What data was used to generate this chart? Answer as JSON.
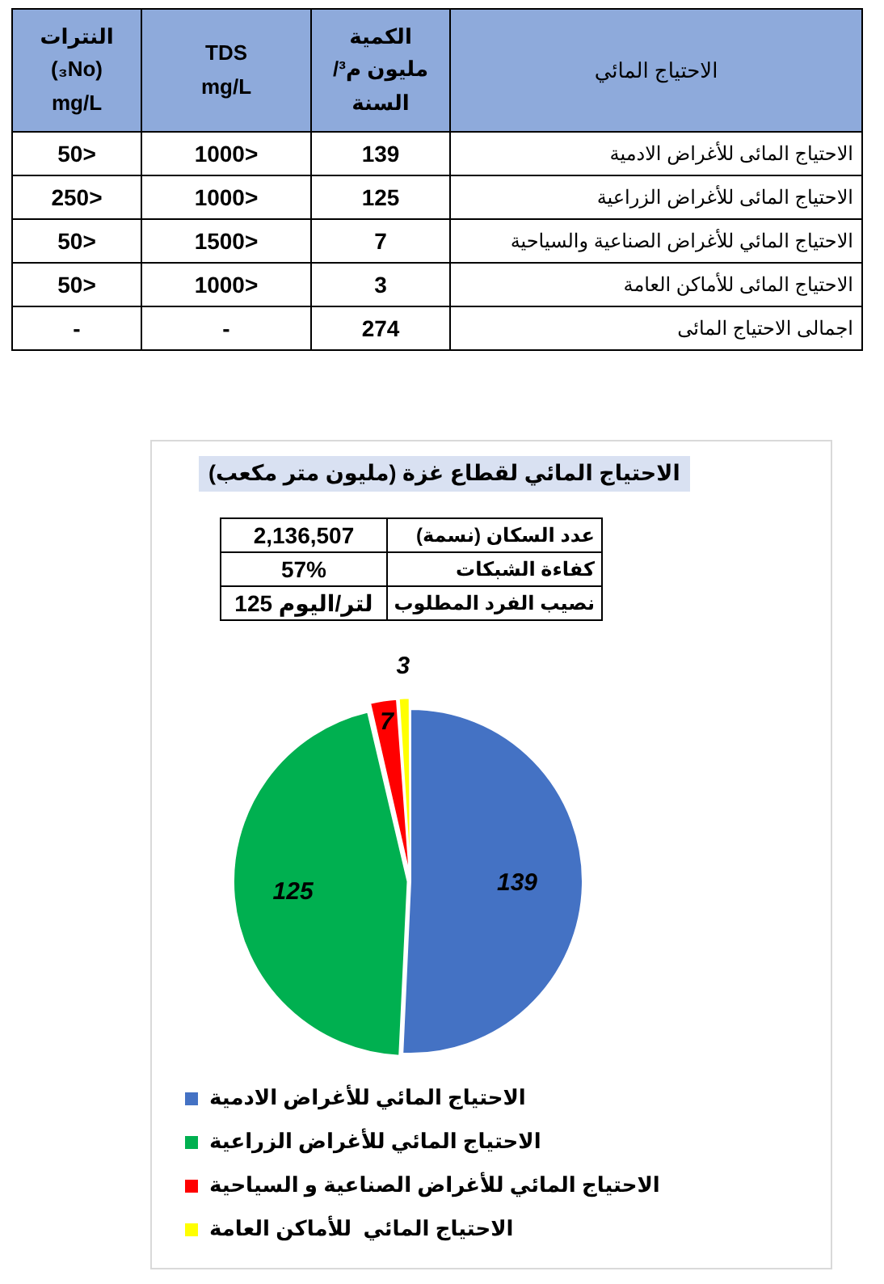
{
  "chart_data": [
    {
      "type": "other",
      "ylabel": "الاحتياج المائي",
      "categories": [
        "الاحتياج المائى للأغراض الادمية",
        "الاحتياج المائى للأغراض الزراعية",
        "الاحتياج المائي للأغراض الصناعية والسياحية",
        "الاحتياج المائى للأماكن العامة",
        "اجمالى الاحتياج المائى"
      ],
      "series": [
        {
          "name": "الكمية مليون م³/ السنة",
          "values": [
            139,
            125,
            7,
            3,
            274
          ]
        },
        {
          "name": "TDS mg/L",
          "values": [
            1000,
            1000,
            1500,
            1000,
            null
          ],
          "value_labels": [
            "1000>",
            "1000>",
            "1500>",
            "1000>",
            "-"
          ]
        },
        {
          "name": "النترات (₃No) mg/L",
          "values": [
            50,
            250,
            50,
            50,
            null
          ],
          "value_labels": [
            "50>",
            "250>",
            "50>",
            "50>",
            "-"
          ]
        }
      ],
      "data_labels": true
    },
    {
      "type": "pie",
      "title": "الاحتياج المائي لقطاع غزة (مليون متر مكعب)",
      "annotations": [
        "عدد السكان (نسمة)",
        "2,136,507",
        "كفاءة الشبكات",
        "57%",
        "نصيب الفرد المطلوب",
        "لتر/اليوم 125"
      ],
      "categories": [
        "الاحتياج المائي للأغراض الادمية",
        "الاحتياج المائي للأغراض الزراعية",
        "الاحتياج المائي للأغراض الصناعية و السياحية",
        "الاحتياج المائي  للأماكن العامة"
      ],
      "values": [
        139,
        125,
        7,
        3
      ],
      "colors": [
        "#4472c4",
        "#00b050",
        "#ff0000",
        "#ffff00"
      ],
      "data_labels": true,
      "legend": "bottom"
    }
  ]
}
